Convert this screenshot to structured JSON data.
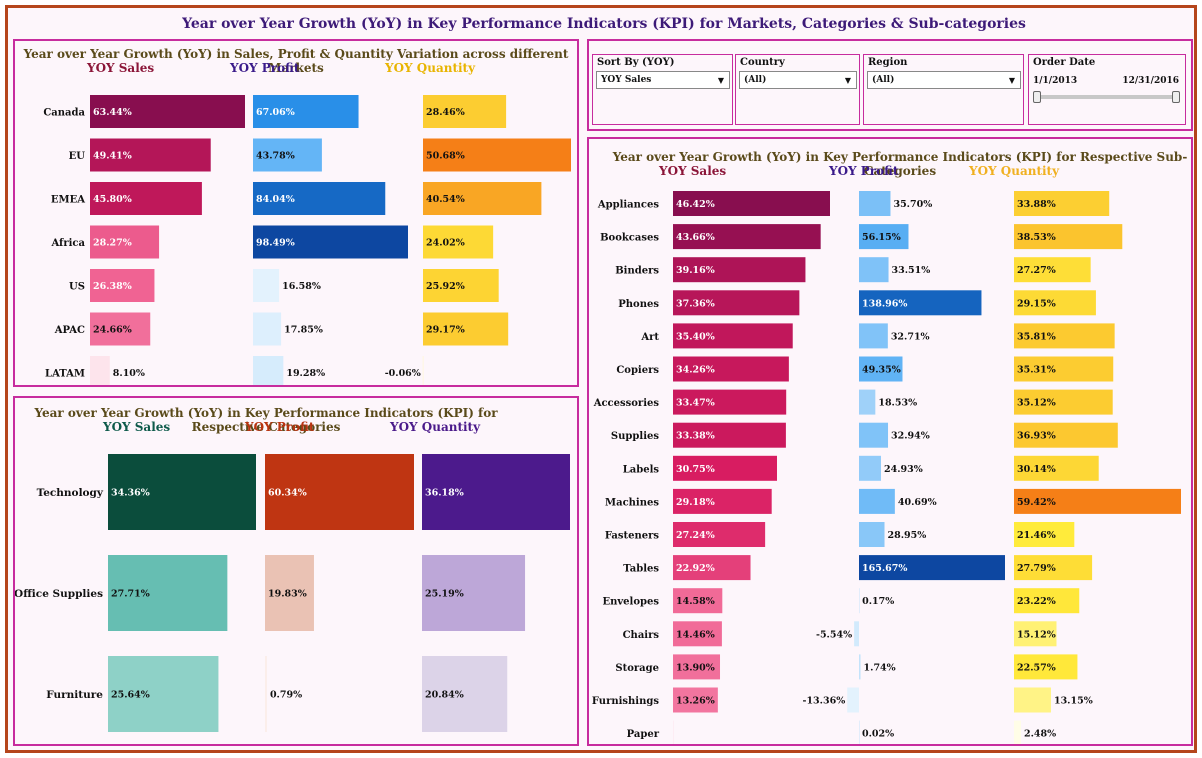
{
  "page_title": "Year over Year Growth (YoY) in  Key Performance Indicators (KPI) for Markets, Categories & Sub-categories",
  "colors": {
    "frame": "#b5451b",
    "panel_border": "#c72c9e",
    "title": "#3d1a78"
  },
  "filters": {
    "sort_by": {
      "label": "Sort By (YOY)",
      "value": "YOY Sales"
    },
    "country": {
      "label": "Country",
      "value": "(All)"
    },
    "region": {
      "label": "Region",
      "value": "(All)"
    },
    "order_date": {
      "label": "Order Date",
      "start": "1/1/2013",
      "end": "12/31/2016"
    }
  },
  "chart_data": [
    {
      "id": "markets",
      "type": "bar",
      "title": "Year over Year Growth (YoY) in  Sales, Profit & Quantity Variation across different Markets",
      "categories": [
        "Canada",
        "EU",
        "EMEA",
        "Africa",
        "US",
        "APAC",
        "LATAM"
      ],
      "series": [
        {
          "name": "YOY Sales",
          "values": [
            63.44,
            49.41,
            45.8,
            28.27,
            26.38,
            24.66,
            8.1
          ],
          "labels": [
            "63.44%",
            "49.41%",
            "45.80%",
            "28.27%",
            "26.38%",
            "24.66%",
            "8.10%"
          ]
        },
        {
          "name": "YOY Profit",
          "values": [
            67.06,
            43.78,
            84.04,
            98.49,
            16.58,
            17.85,
            19.28
          ],
          "labels": [
            "67.06%",
            "43.78%",
            "84.04%",
            "98.49%",
            "16.58%",
            "17.85%",
            "19.28%"
          ]
        },
        {
          "name": "YOY Quantity",
          "values": [
            28.46,
            50.68,
            40.54,
            24.02,
            25.92,
            29.17,
            -0.06
          ],
          "labels": [
            "28.46%",
            "50.68%",
            "40.54%",
            "24.02%",
            "25.92%",
            "29.17%",
            "-0.06%"
          ]
        }
      ]
    },
    {
      "id": "categories",
      "type": "bar",
      "title": "Year over Year Growth (YoY) in  Key Performance Indicators (KPI) for Respective Categories",
      "categories": [
        "Technology",
        "Office Supplies",
        "Furniture"
      ],
      "series": [
        {
          "name": "YOY Sales",
          "values": [
            34.36,
            27.71,
            25.64
          ],
          "labels": [
            "34.36%",
            "27.71%",
            "25.64%"
          ]
        },
        {
          "name": "YOY Profit",
          "values": [
            60.34,
            19.83,
            0.79
          ],
          "labels": [
            "60.34%",
            "19.83%",
            "0.79%"
          ]
        },
        {
          "name": "YOY Quantity",
          "values": [
            36.18,
            25.19,
            20.84
          ],
          "labels": [
            "36.18%",
            "25.19%",
            "20.84%"
          ]
        }
      ]
    },
    {
      "id": "subcategories",
      "type": "bar",
      "title": "Year over Year Growth (YoY) in  Key Performance Indicators (KPI) for Respective Sub-Categories",
      "categories": [
        "Appliances",
        "Bookcases",
        "Binders",
        "Phones",
        "Art",
        "Copiers",
        "Accessories",
        "Supplies",
        "Labels",
        "Machines",
        "Fasteners",
        "Tables",
        "Envelopes",
        "Chairs",
        "Storage",
        "Furnishings",
        "Paper"
      ],
      "series": [
        {
          "name": "YOY Sales",
          "values": [
            46.42,
            43.66,
            39.16,
            37.36,
            35.4,
            34.26,
            33.47,
            33.38,
            30.75,
            29.18,
            27.24,
            22.92,
            14.58,
            14.46,
            13.9,
            13.26,
            0.0
          ],
          "labels": [
            "46.42%",
            "43.66%",
            "39.16%",
            "37.36%",
            "35.40%",
            "34.26%",
            "33.47%",
            "33.38%",
            "30.75%",
            "29.18%",
            "27.24%",
            "22.92%",
            "14.58%",
            "14.46%",
            "13.90%",
            "13.26%",
            ""
          ]
        },
        {
          "name": "YOY Profit",
          "values": [
            35.7,
            56.15,
            33.51,
            138.96,
            32.71,
            49.35,
            18.53,
            32.94,
            24.93,
            40.69,
            28.95,
            165.67,
            0.17,
            -5.54,
            1.74,
            -13.36,
            0.02
          ],
          "labels": [
            "35.70%",
            "56.15%",
            "33.51%",
            "138.96%",
            "32.71%",
            "49.35%",
            "18.53%",
            "32.94%",
            "24.93%",
            "40.69%",
            "28.95%",
            "165.67%",
            "0.17%",
            "-5.54%",
            "1.74%",
            "-13.36%",
            "0.02%"
          ]
        },
        {
          "name": "YOY Quantity",
          "values": [
            33.88,
            38.53,
            27.27,
            29.15,
            35.81,
            35.31,
            35.12,
            36.93,
            30.14,
            59.42,
            21.46,
            27.79,
            23.22,
            15.12,
            22.57,
            13.15,
            2.48
          ],
          "labels": [
            "33.88%",
            "38.53%",
            "27.27%",
            "29.15%",
            "35.81%",
            "35.31%",
            "35.12%",
            "36.93%",
            "30.14%",
            "59.42%",
            "21.46%",
            "27.79%",
            "23.22%",
            "15.12%",
            "22.57%",
            "13.15%",
            "2.48%"
          ]
        }
      ]
    }
  ]
}
